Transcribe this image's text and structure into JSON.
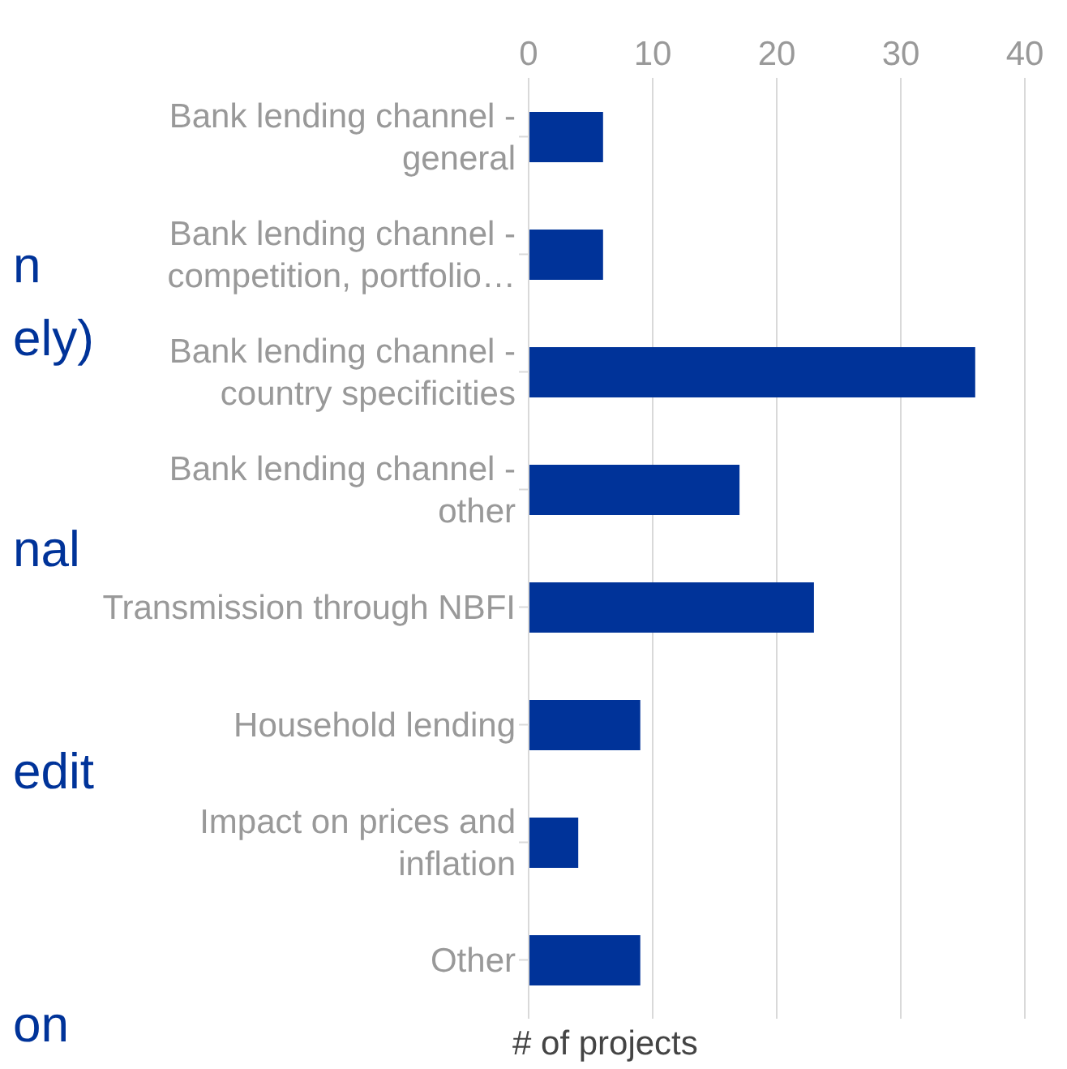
{
  "chart_data": {
    "type": "bar",
    "orientation": "horizontal",
    "xlabel": "# of projects",
    "categories": [
      "Bank lending channel - general",
      "Bank lending channel - competition, portfolio…",
      "Bank lending channel - country specificities",
      "Bank lending channel - other",
      "Transmission through NBFI",
      "Household lending",
      "Impact on prices and inflation",
      "Other"
    ],
    "values": [
      6,
      6,
      36,
      17,
      23,
      9,
      4,
      9
    ],
    "color": "#003399",
    "xlim": [
      0,
      40
    ],
    "xticks": [
      0,
      10,
      20,
      30,
      40
    ],
    "grid": "x",
    "annotations": [
      "n",
      "ely)",
      "nal",
      "edit",
      "on"
    ]
  }
}
